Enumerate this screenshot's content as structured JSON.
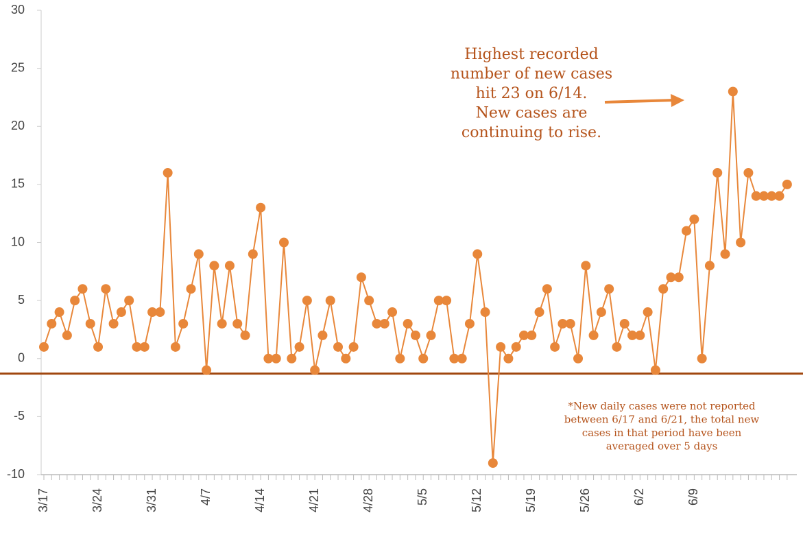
{
  "chart_data": {
    "type": "line",
    "categories": [
      "3/17",
      null,
      null,
      null,
      null,
      null,
      null,
      "3/24",
      null,
      null,
      null,
      null,
      null,
      null,
      "3/31",
      null,
      null,
      null,
      null,
      null,
      null,
      "4/7",
      null,
      null,
      null,
      null,
      null,
      null,
      "4/14",
      null,
      null,
      null,
      null,
      null,
      null,
      "4/21",
      null,
      null,
      null,
      null,
      null,
      null,
      "4/28",
      null,
      null,
      null,
      null,
      null,
      null,
      "5/5",
      null,
      null,
      null,
      null,
      null,
      null,
      "5/12",
      null,
      null,
      null,
      null,
      null,
      null,
      "5/19",
      null,
      null,
      null,
      null,
      null,
      null,
      "5/26",
      null,
      null,
      null,
      null,
      null,
      null,
      "6/2",
      null,
      null,
      null,
      null,
      null,
      null,
      "6/9",
      null,
      null,
      null,
      null,
      null,
      null,
      null,
      null,
      null,
      null,
      null,
      null
    ],
    "values": [
      1,
      3,
      4,
      2,
      5,
      6,
      3,
      1,
      6,
      3,
      4,
      5,
      1,
      1,
      4,
      4,
      16,
      1,
      3,
      6,
      9,
      -1,
      8,
      3,
      8,
      3,
      2,
      9,
      13,
      0,
      0,
      10,
      0,
      1,
      5,
      -1,
      2,
      5,
      1,
      0,
      1,
      7,
      5,
      3,
      3,
      4,
      0,
      3,
      2,
      0,
      2,
      5,
      5,
      0,
      0,
      3,
      9,
      4,
      -9,
      1,
      0,
      1,
      2,
      2,
      4,
      6,
      1,
      3,
      3,
      0,
      8,
      2,
      4,
      6,
      1,
      3,
      2,
      2,
      4,
      -1,
      6,
      7,
      7,
      11,
      12,
      0,
      8,
      16,
      9,
      23,
      10,
      16,
      14,
      14,
      14,
      14,
      15
    ],
    "color": "#e8873a",
    "ylim": [
      -10,
      30
    ],
    "yticks": [
      -10,
      -5,
      0,
      5,
      10,
      15,
      20,
      25,
      30
    ],
    "reference_line": -1.3,
    "reference_color": "#a0470f",
    "annotation": [
      "Highest recorded",
      "number of new cases",
      "hit 23 on 6/14.",
      "New cases are",
      "continuing to rise."
    ],
    "note": [
      "*New daily cases were not reported",
      "between 6/17 and 6/21, the total new",
      "cases in that period have been",
      "averaged over 5 days"
    ]
  }
}
